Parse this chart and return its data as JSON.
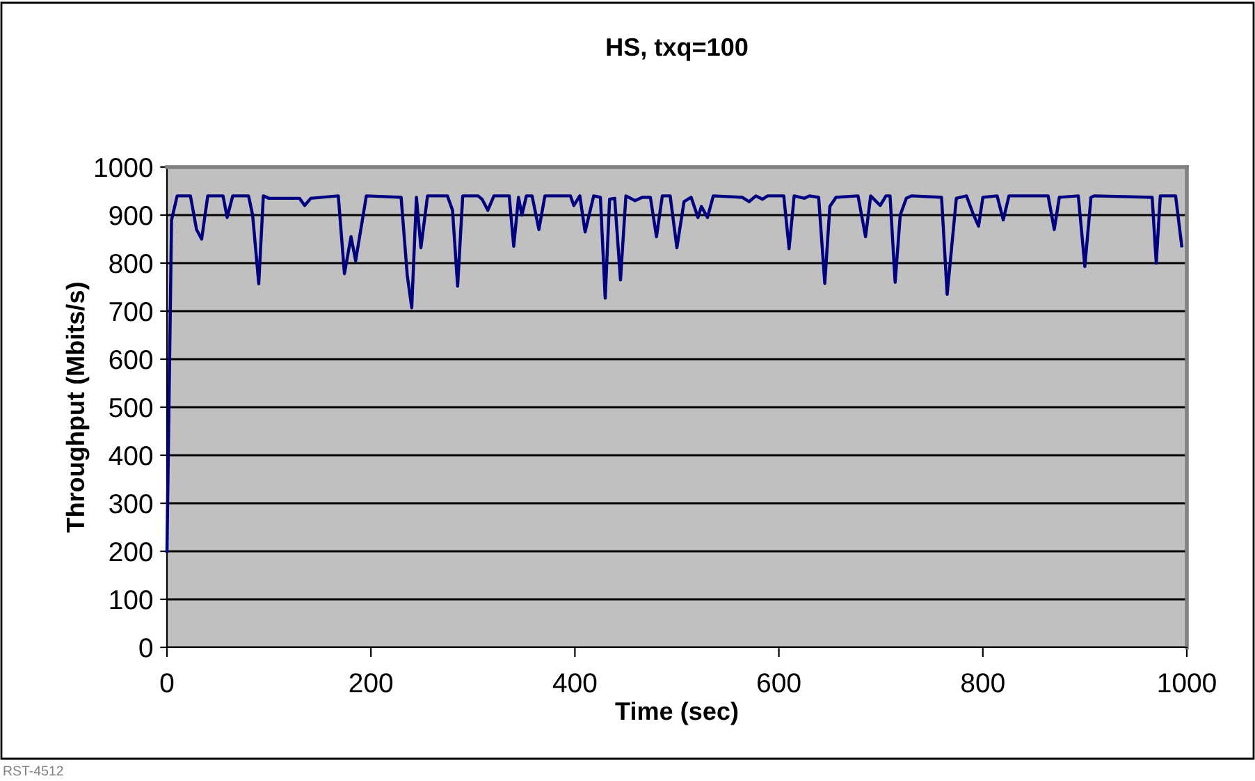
{
  "chart_data": {
    "type": "line",
    "title": "HS, txq=100",
    "xlabel": "Time (sec)",
    "ylabel": "Throughput (Mbits/s)",
    "annotations": [
      "RST-4512"
    ],
    "series": [
      {
        "color": "#000080",
        "x": [
          0,
          4.5,
          10,
          23,
          29,
          34,
          40,
          55,
          59,
          64.5,
          80,
          84,
          90,
          94.5,
          100,
          130,
          135,
          141,
          168,
          174,
          180.5,
          185,
          195.5,
          229.6,
          235.6,
          240,
          244.6,
          249,
          255.5,
          275,
          280,
          285,
          290,
          305,
          309,
          314.6,
          320.6,
          335.6,
          340,
          344.7,
          348,
          352.4,
          358,
          364.7,
          370.6,
          395.6,
          399,
          404.8,
          410,
          418.4,
          425,
          429.7,
          434,
          439,
          444.7,
          450,
          459,
          466,
          474,
          480,
          485.7,
          493.4,
          500,
          507,
          514,
          520.7,
          524,
          530,
          535.7,
          564,
          570.7,
          577.5,
          584,
          589,
          604.8,
          610,
          615,
          625,
          630,
          639,
          645,
          650,
          656,
          677.6,
          685,
          690,
          699.4,
          705,
          709,
          714,
          719,
          725,
          730,
          759.5,
          765,
          774,
          784,
          790,
          795.8,
          800,
          814,
          820,
          825.6,
          864,
          870,
          875,
          893.6,
          900,
          906,
          909.5,
          966,
          970,
          974,
          989,
          995
        ],
        "values": [
          200,
          890,
          940,
          940,
          870,
          850,
          940,
          940,
          895,
          940,
          940,
          900,
          757,
          940,
          935,
          935,
          920,
          935,
          940,
          778,
          855,
          805,
          940,
          937,
          775,
          707,
          937,
          832,
          940,
          940,
          910,
          752,
          940,
          940,
          933,
          910,
          940,
          940,
          835,
          937,
          900,
          940,
          940,
          870,
          940,
          940,
          920,
          940,
          865,
          940,
          937,
          727,
          933,
          935,
          765,
          940,
          930,
          937,
          937,
          855,
          940,
          940,
          832,
          928,
          937,
          895,
          918,
          895,
          940,
          937,
          928,
          940,
          933,
          940,
          940,
          830,
          940,
          935,
          940,
          937,
          758,
          918,
          937,
          940,
          855,
          940,
          920,
          940,
          940,
          760,
          900,
          935,
          940,
          937,
          735,
          935,
          940,
          905,
          877,
          937,
          940,
          890,
          940,
          940,
          870,
          937,
          940,
          793,
          937,
          940,
          937,
          800,
          940,
          940,
          836
        ]
      }
    ],
    "xlim": [
      0,
      1000
    ],
    "xticks": [
      0,
      200,
      400,
      600,
      800,
      1000
    ],
    "ylim": [
      0,
      1000
    ],
    "yticks": [
      0,
      100,
      200,
      300,
      400,
      500,
      600,
      700,
      800,
      900,
      1000
    ],
    "grid": "y",
    "marker": "none",
    "line_style": "solid"
  }
}
